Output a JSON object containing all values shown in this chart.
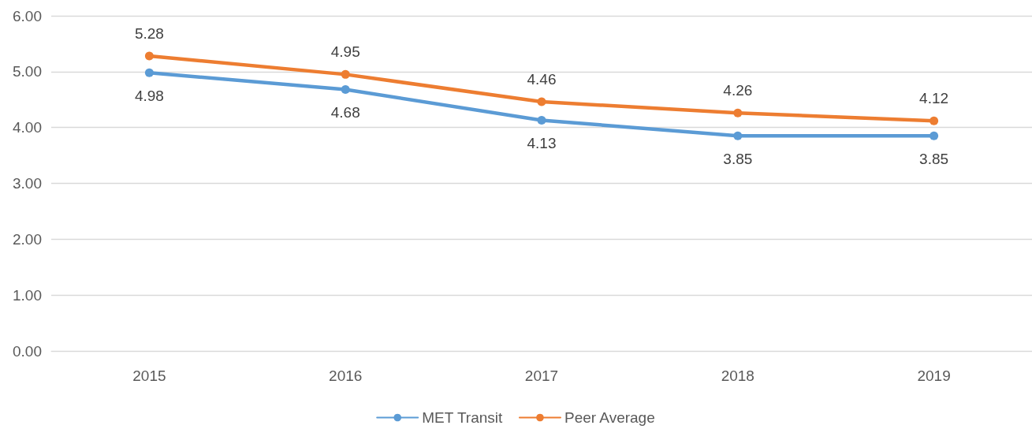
{
  "chart_data": {
    "type": "line",
    "categories": [
      "2015",
      "2016",
      "2017",
      "2018",
      "2019"
    ],
    "series": [
      {
        "name": "MET Transit",
        "color": "#5b9bd5",
        "values": [
          4.98,
          4.68,
          4.13,
          3.85,
          3.85
        ]
      },
      {
        "name": "Peer Average",
        "color": "#ed7d31",
        "values": [
          5.28,
          4.95,
          4.46,
          4.26,
          4.12
        ]
      }
    ],
    "ylim": [
      0,
      6
    ],
    "yticks": [
      {
        "value": 0,
        "label": "0.00"
      },
      {
        "value": 1,
        "label": "1.00"
      },
      {
        "value": 2,
        "label": "2.00"
      },
      {
        "value": 3,
        "label": "3.00"
      },
      {
        "value": 4,
        "label": "4.00"
      },
      {
        "value": 5,
        "label": "5.00"
      },
      {
        "value": 6,
        "label": "6.00"
      }
    ],
    "grid": "y",
    "legend": "bottom",
    "marker": "circle",
    "line_style": "solid",
    "data_labels": true
  }
}
